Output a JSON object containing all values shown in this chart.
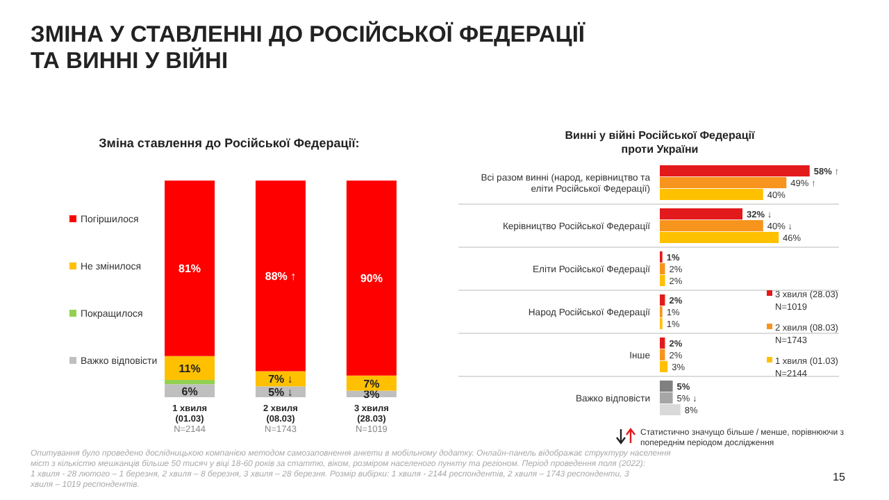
{
  "chart_data": [
    {
      "type": "bar",
      "stacked": true,
      "title": "ЗМІНА У СТАВЛЕННІ ДО РОСІЙСЬКОЇ ФЕДЕРАЦІЇ ТА ВИННІ У ВІЙНІ",
      "subtitle": "Зміна ставлення до Російської Федерації:",
      "categories": [
        "1 хвиля\n(01.03)\nN=2144",
        "2 хвиля\n(08.03)\nN=1743",
        "3 хвиля\n(28.03)\nN=1019"
      ],
      "legend": "left",
      "series": [
        {
          "name": "Важко відповісти",
          "color": "#bfbfbf",
          "values": [
            6,
            5,
            3
          ],
          "value_labels": [
            "6%",
            "5% ↓",
            "3%"
          ]
        },
        {
          "name": "Покращилося",
          "color": "#92d050",
          "values": [
            2,
            0,
            0
          ],
          "value_labels": [
            null,
            null,
            null
          ]
        },
        {
          "name": "Не змінилося",
          "color": "#ffc000",
          "values": [
            11,
            7,
            7
          ],
          "value_labels": [
            "11%",
            "7% ↓",
            "7%"
          ]
        },
        {
          "name": "Погіршилося",
          "color": "#ff0000",
          "values": [
            81,
            88,
            90
          ],
          "value_labels": [
            "81%",
            "88% ↑",
            "90%"
          ]
        }
      ],
      "annotations": [
        "Опитування було проведено дослідницькою компанією методом самозаповнення анкети в мобільному додатку. Онлайн-панель відображає структуру населення міст з кількістю мешканців більше 50 тисяч у віці 18-60 років за статтю, віком, розміром населеного пункту та регіоном. Період проведення поля (2022): 1 хвиля - 28 лютого – 1 березня, 2 хвиля – 8 березня, 3 хвиля – 28 березня. Розмір вибірки: 1 хвиля - 2144 респондентів, 2 хвиля – 1743 респонденти, 3 хвиля – 1019 респондентів.",
        "15"
      ]
    },
    {
      "type": "bar",
      "orientation": "horizontal",
      "title": "Винні у війні Російської Федерації проти України",
      "categories": [
        "Всі разом винні (народ, керівництво та еліти Російської Федерації)",
        "Керівництво Російської Федерації",
        "Еліти Російської Федерації",
        "Народ Російської Федерації",
        "Інше",
        "Важко відповісти"
      ],
      "legend": "right",
      "series": [
        {
          "name": "3 хвиля (28.03)\nN=1019",
          "color": "#e31a1c",
          "colors": [
            "#e31a1c",
            "#e31a1c",
            "#e31a1c",
            "#e31a1c",
            "#e31a1c",
            "#808080"
          ],
          "values": [
            58,
            32,
            1,
            2,
            2,
            5
          ],
          "value_labels": [
            "58% ↑",
            "32% ↓",
            "1%",
            "2%",
            "2%",
            "5%"
          ]
        },
        {
          "name": "2 хвиля (08.03)\nN=1743",
          "color": "#f7941d",
          "colors": [
            "#f7941d",
            "#f7941d",
            "#f7941d",
            "#f7941d",
            "#f7941d",
            "#a6a6a6"
          ],
          "values": [
            49,
            40,
            2,
            1,
            2,
            5
          ],
          "value_labels": [
            "49% ↑",
            "40% ↓",
            "2%",
            "1%",
            "2%",
            "5% ↓"
          ]
        },
        {
          "name": "1 хвиля (01.03)\nN=2144",
          "color": "#ffc000",
          "colors": [
            "#ffc000",
            "#ffc000",
            "#ffc000",
            "#ffc000",
            "#ffc000",
            "#d9d9d9"
          ],
          "values": [
            40,
            46,
            2,
            1,
            3,
            8
          ],
          "value_labels": [
            "40%",
            "46%",
            "2%",
            "1%",
            "3%",
            "8%"
          ]
        }
      ],
      "annotations": [
        "Статистично значущо більше / менше, порівнюючи з попереднім періодом дослідження"
      ]
    }
  ]
}
